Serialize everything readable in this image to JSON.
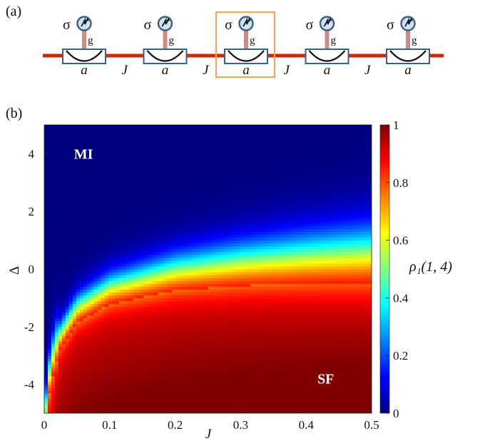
{
  "panel_a": {
    "label": "(a)",
    "site_count": 5,
    "highlight_index": 2,
    "sites": [
      {
        "spin": "σ",
        "coupling": "g",
        "mode": "a"
      },
      {
        "spin": "σ",
        "coupling": "g",
        "mode": "a"
      },
      {
        "spin": "σ",
        "coupling": "g",
        "mode": "a"
      },
      {
        "spin": "σ",
        "coupling": "g",
        "mode": "a"
      },
      {
        "spin": "σ",
        "coupling": "g",
        "mode": "a"
      }
    ],
    "hopping": [
      "J",
      "J",
      "J",
      "J"
    ],
    "colors": {
      "waveguide": "#cc2a00",
      "cavity_border": "#3b5f86",
      "coupling": "#d08a82",
      "highlight": "#f0a55a",
      "atom_fill": "#cfe0ee"
    }
  },
  "panel_b": {
    "label": "(b)",
    "regions": [
      {
        "text": "MI"
      },
      {
        "text": "SF"
      }
    ],
    "colorbar": {
      "label": "ρ₁(1, 4)",
      "range": [
        0,
        1
      ],
      "ticks": [
        {
          "v": 0,
          "t": "0"
        },
        {
          "v": 0.2,
          "t": "0.2"
        },
        {
          "v": 0.4,
          "t": "0.4"
        },
        {
          "v": 0.6,
          "t": "0.6"
        },
        {
          "v": 0.8,
          "t": "0.8"
        },
        {
          "v": 1,
          "t": "1"
        }
      ],
      "colormap": "jet"
    }
  },
  "chart_data": {
    "type": "heatmap",
    "xlabel": "J",
    "ylabel": "Δ",
    "xlim": [
      0,
      0.5
    ],
    "ylim": [
      -5,
      5
    ],
    "xticks": [
      {
        "v": 0,
        "t": "0"
      },
      {
        "v": 0.1,
        "t": "0.1"
      },
      {
        "v": 0.2,
        "t": "0.2"
      },
      {
        "v": 0.3,
        "t": "0.3"
      },
      {
        "v": 0.4,
        "t": "0.4"
      },
      {
        "v": 0.5,
        "t": "0.5"
      }
    ],
    "yticks": [
      {
        "v": -4,
        "t": "-4"
      },
      {
        "v": -2,
        "t": "-2"
      },
      {
        "v": 0,
        "t": "0"
      },
      {
        "v": 2,
        "t": "2"
      },
      {
        "v": 4,
        "t": "4"
      }
    ],
    "colorbar_label": "ρ₁(1, 4)",
    "value_range": [
      0,
      1
    ],
    "transition_boundary": {
      "J": [
        0.003,
        0.01,
        0.02,
        0.05,
        0.1,
        0.2,
        0.3,
        0.4,
        0.5
      ],
      "Delta": [
        -4.6,
        -3.2,
        -2.4,
        -1.3,
        -0.6,
        0.0,
        0.3,
        0.5,
        0.65
      ]
    },
    "region_labels": [
      {
        "text": "MI",
        "J": 0.06,
        "Delta": 4.0
      },
      {
        "text": "SF",
        "J": 0.43,
        "Delta": -3.8
      }
    ]
  }
}
